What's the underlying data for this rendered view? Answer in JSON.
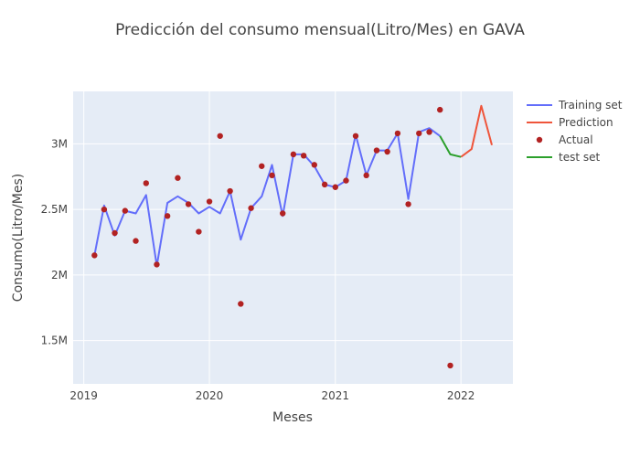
{
  "chart_data": {
    "type": "line",
    "title": "Predicción del consumo mensual(Litro/Mes) en GAVA",
    "xlabel": "Meses",
    "ylabel": "Consumo(Litro/Mes)",
    "x_ticks": [
      {
        "date": "2019-01-01",
        "label": "2019"
      },
      {
        "date": "2020-01-01",
        "label": "2020"
      },
      {
        "date": "2021-01-01",
        "label": "2021"
      },
      {
        "date": "2022-01-01",
        "label": "2022"
      }
    ],
    "y_ticks": [
      {
        "value": 1500000,
        "label": "1.5M"
      },
      {
        "value": 2000000,
        "label": "2M"
      },
      {
        "value": 2500000,
        "label": "2.5M"
      },
      {
        "value": 3000000,
        "label": "3M"
      }
    ],
    "xlim": [
      "2018-12-01",
      "2022-06-01"
    ],
    "ylim": [
      1170000,
      3400000
    ],
    "grid": true,
    "legend_position": "top-right",
    "series": [
      {
        "name": "Training set",
        "mode": "line",
        "color": "#636efa",
        "points": [
          [
            "2019-02-01",
            2150000
          ],
          [
            "2019-03-01",
            2530000
          ],
          [
            "2019-04-01",
            2300000
          ],
          [
            "2019-05-01",
            2490000
          ],
          [
            "2019-06-01",
            2470000
          ],
          [
            "2019-07-01",
            2610000
          ],
          [
            "2019-08-01",
            2070000
          ],
          [
            "2019-09-01",
            2550000
          ],
          [
            "2019-10-01",
            2600000
          ],
          [
            "2019-11-01",
            2550000
          ],
          [
            "2019-12-01",
            2470000
          ],
          [
            "2020-01-01",
            2520000
          ],
          [
            "2020-02-01",
            2470000
          ],
          [
            "2020-03-01",
            2640000
          ],
          [
            "2020-04-01",
            2270000
          ],
          [
            "2020-05-01",
            2510000
          ],
          [
            "2020-06-01",
            2600000
          ],
          [
            "2020-07-01",
            2840000
          ],
          [
            "2020-08-01",
            2450000
          ],
          [
            "2020-09-01",
            2920000
          ],
          [
            "2020-10-01",
            2920000
          ],
          [
            "2020-11-01",
            2830000
          ],
          [
            "2020-12-01",
            2690000
          ],
          [
            "2021-01-01",
            2670000
          ],
          [
            "2021-02-01",
            2720000
          ],
          [
            "2021-03-01",
            3070000
          ],
          [
            "2021-04-01",
            2760000
          ],
          [
            "2021-05-01",
            2950000
          ],
          [
            "2021-06-01",
            2950000
          ],
          [
            "2021-07-01",
            3080000
          ],
          [
            "2021-08-01",
            2580000
          ],
          [
            "2021-09-01",
            3090000
          ],
          [
            "2021-10-01",
            3120000
          ],
          [
            "2021-11-01",
            3060000
          ]
        ]
      },
      {
        "name": "Prediction",
        "mode": "line",
        "color": "#ef553b",
        "points": [
          [
            "2022-01-01",
            2900000
          ],
          [
            "2022-02-01",
            2960000
          ],
          [
            "2022-03-01",
            3290000
          ],
          [
            "2022-04-01",
            2990000
          ]
        ]
      },
      {
        "name": "Actual",
        "mode": "markers",
        "color": "#b22222",
        "points": [
          [
            "2019-02-01",
            2150000
          ],
          [
            "2019-03-01",
            2500000
          ],
          [
            "2019-04-01",
            2320000
          ],
          [
            "2019-05-01",
            2490000
          ],
          [
            "2019-06-01",
            2260000
          ],
          [
            "2019-07-01",
            2700000
          ],
          [
            "2019-08-01",
            2080000
          ],
          [
            "2019-09-01",
            2450000
          ],
          [
            "2019-10-01",
            2740000
          ],
          [
            "2019-11-01",
            2540000
          ],
          [
            "2019-12-01",
            2330000
          ],
          [
            "2020-01-01",
            2560000
          ],
          [
            "2020-02-01",
            3060000
          ],
          [
            "2020-03-01",
            2640000
          ],
          [
            "2020-04-01",
            1780000
          ],
          [
            "2020-05-01",
            2510000
          ],
          [
            "2020-06-01",
            2830000
          ],
          [
            "2020-07-01",
            2760000
          ],
          [
            "2020-08-01",
            2470000
          ],
          [
            "2020-09-01",
            2920000
          ],
          [
            "2020-10-01",
            2910000
          ],
          [
            "2020-11-01",
            2840000
          ],
          [
            "2020-12-01",
            2690000
          ],
          [
            "2021-01-01",
            2670000
          ],
          [
            "2021-02-01",
            2720000
          ],
          [
            "2021-03-01",
            3060000
          ],
          [
            "2021-04-01",
            2760000
          ],
          [
            "2021-05-01",
            2950000
          ],
          [
            "2021-06-01",
            2940000
          ],
          [
            "2021-07-01",
            3080000
          ],
          [
            "2021-08-01",
            2540000
          ],
          [
            "2021-09-01",
            3080000
          ],
          [
            "2021-10-01",
            3090000
          ],
          [
            "2021-11-01",
            3260000
          ],
          [
            "2021-12-01",
            1310000
          ]
        ]
      },
      {
        "name": "test set",
        "mode": "line",
        "color": "#2ca02c",
        "points": [
          [
            "2021-11-01",
            3060000
          ],
          [
            "2021-12-01",
            2920000
          ],
          [
            "2022-01-01",
            2900000
          ]
        ]
      }
    ]
  }
}
